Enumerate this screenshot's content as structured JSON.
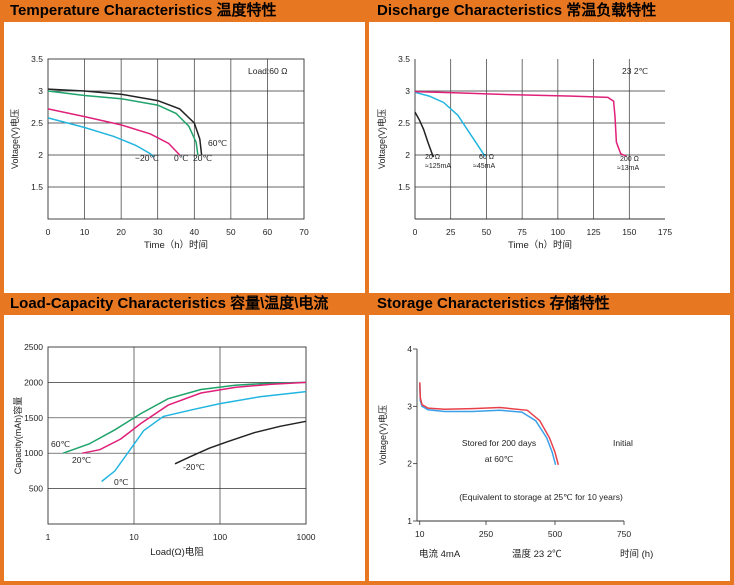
{
  "panel_titles": {
    "temperature": "Temperature Characteristics 温度特性",
    "discharge": "Discharge Characteristics 常温负载特性",
    "load": "Load-Capacity Characteristics 容量\\温度\\电流",
    "storage": "Storage Characteristics  存储特性"
  },
  "colors": {
    "accent": "#e87722",
    "black": "#222222",
    "cyan": "#22b5e0",
    "green": "#1fa36b",
    "magenta": "#e0207a",
    "red": "#e8404a",
    "blue": "#3aa0e8"
  },
  "chart_data": [
    {
      "id": "temperature",
      "type": "line",
      "xlabel": "Time（h）时间",
      "ylabel": "Voltage(V)电压",
      "xlim": [
        0,
        70
      ],
      "ylim": [
        1.0,
        3.5
      ],
      "xticks": [
        0,
        10,
        20,
        30,
        40,
        50,
        60,
        70
      ],
      "yticks": [
        1.5,
        2.0,
        2.5,
        3.0,
        3.5
      ],
      "grid": true,
      "annotations": [
        "Load:60 Ω"
      ],
      "series": [
        {
          "name": "60℃",
          "color": "#222222",
          "points": [
            [
              0,
              3.03
            ],
            [
              10,
              3.0
            ],
            [
              20,
              2.95
            ],
            [
              30,
              2.85
            ],
            [
              36,
              2.72
            ],
            [
              40,
              2.5
            ],
            [
              41.5,
              2.25
            ],
            [
              42,
              2.0
            ]
          ]
        },
        {
          "name": "20℃",
          "color": "#1fa36b",
          "points": [
            [
              0,
              3.0
            ],
            [
              10,
              2.93
            ],
            [
              20,
              2.88
            ],
            [
              30,
              2.78
            ],
            [
              35,
              2.65
            ],
            [
              38.5,
              2.45
            ],
            [
              40.5,
              2.2
            ],
            [
              41,
              2.0
            ]
          ]
        },
        {
          "name": "0℃",
          "color": "#e0207a",
          "points": [
            [
              0,
              2.72
            ],
            [
              10,
              2.6
            ],
            [
              20,
              2.47
            ],
            [
              28,
              2.33
            ],
            [
              33,
              2.18
            ],
            [
              36,
              2.0
            ]
          ]
        },
        {
          "name": "−20℃",
          "color": "#22b5e0",
          "points": [
            [
              0,
              2.58
            ],
            [
              10,
              2.43
            ],
            [
              18,
              2.29
            ],
            [
              24,
              2.15
            ],
            [
              28,
              2.02
            ],
            [
              29,
              1.97
            ]
          ]
        }
      ],
      "series_labels": [
        "60℃",
        "20℃",
        "0℃",
        "−20℃"
      ]
    },
    {
      "id": "discharge",
      "type": "line",
      "xlabel": "Time（h）时间",
      "ylabel": "Voltage(V)电压",
      "xlim": [
        0,
        175
      ],
      "ylim": [
        1.0,
        3.5
      ],
      "xticks": [
        0,
        25,
        50,
        75,
        100,
        125,
        150,
        175
      ],
      "yticks": [
        1.5,
        2.0,
        2.5,
        3.0,
        3.5
      ],
      "grid": true,
      "annotations": [
        "23    2℃"
      ],
      "series": [
        {
          "name": "20 Ω ≈125mA",
          "color": "#222222",
          "points": [
            [
              0,
              2.67
            ],
            [
              3,
              2.55
            ],
            [
              6,
              2.4
            ],
            [
              9,
              2.2
            ],
            [
              12,
              2.02
            ],
            [
              13,
              1.97
            ]
          ]
        },
        {
          "name": "60 Ω ≈45mA",
          "color": "#22b5e0",
          "points": [
            [
              0,
              2.98
            ],
            [
              10,
              2.92
            ],
            [
              20,
              2.82
            ],
            [
              30,
              2.62
            ],
            [
              38,
              2.35
            ],
            [
              44,
              2.15
            ],
            [
              49,
              1.98
            ]
          ]
        },
        {
          "name": "200 Ω ≈13mA",
          "color": "#e0207a",
          "points": [
            [
              0,
              2.99
            ],
            [
              30,
              2.97
            ],
            [
              70,
              2.94
            ],
            [
              110,
              2.92
            ],
            [
              135,
              2.9
            ],
            [
              139,
              2.84
            ],
            [
              140,
              2.6
            ],
            [
              141,
              2.2
            ],
            [
              144,
              2.02
            ],
            [
              148,
              1.98
            ]
          ]
        }
      ],
      "series_labels": [
        "20 Ω",
        "≈125mA",
        "60 Ω",
        "≈45mA",
        "200 Ω",
        "≈13mA"
      ]
    },
    {
      "id": "load",
      "type": "line",
      "xlabel": "Load(Ω)电阻",
      "ylabel": "Capacity(mAh)容量",
      "xscale": "log",
      "xlim": [
        1,
        1000
      ],
      "ylim": [
        0,
        2500
      ],
      "xticks": [
        1,
        10,
        100,
        1000
      ],
      "yticks": [
        500,
        1000,
        1500,
        2000,
        2500
      ],
      "grid": true,
      "series": [
        {
          "name": "60℃",
          "color": "#1fa36b",
          "points": [
            [
              1.5,
              1000
            ],
            [
              3,
              1130
            ],
            [
              6,
              1330
            ],
            [
              12,
              1560
            ],
            [
              25,
              1770
            ],
            [
              60,
              1900
            ],
            [
              150,
              1960
            ],
            [
              400,
              1990
            ],
            [
              1000,
              2000
            ]
          ]
        },
        {
          "name": "20℃",
          "color": "#e0207a",
          "points": [
            [
              2.5,
              1000
            ],
            [
              4,
              1050
            ],
            [
              7,
              1200
            ],
            [
              12,
              1420
            ],
            [
              25,
              1680
            ],
            [
              60,
              1850
            ],
            [
              150,
              1930
            ],
            [
              400,
              1975
            ],
            [
              1000,
              2000
            ]
          ]
        },
        {
          "name": "0℃",
          "color": "#22b5e0",
          "points": [
            [
              4.2,
              600
            ],
            [
              6,
              750
            ],
            [
              9,
              1050
            ],
            [
              13,
              1320
            ],
            [
              22,
              1520
            ],
            [
              50,
              1620
            ],
            [
              100,
              1700
            ],
            [
              300,
              1800
            ],
            [
              1000,
              1870
            ]
          ]
        },
        {
          "name": "-20℃",
          "color": "#222222",
          "points": [
            [
              30,
              850
            ],
            [
              45,
              950
            ],
            [
              75,
              1070
            ],
            [
              120,
              1160
            ],
            [
              250,
              1290
            ],
            [
              500,
              1380
            ],
            [
              1000,
              1450
            ]
          ]
        }
      ],
      "series_labels": [
        "60℃",
        "20℃",
        "0℃",
        "-20℃"
      ]
    },
    {
      "id": "storage",
      "type": "line",
      "ylabel": "Voltage(V)电压",
      "xlim": [
        0,
        750
      ],
      "ylim": [
        1,
        4
      ],
      "xticks": [
        10,
        250,
        500,
        750
      ],
      "yticks": [
        1,
        2,
        3,
        4
      ],
      "grid": false,
      "annotations": [
        "Stored for 200 days",
        "at 60℃",
        "Initial",
        "(Equivalent to storage at 25℃ for 10 years)"
      ],
      "footer": [
        "电流  4mA",
        "温度  23    2℃",
        "时间 (h)"
      ],
      "series": [
        {
          "name": "Stored",
          "color": "#3aa0e8",
          "points": [
            [
              10,
              3.38
            ],
            [
              12,
              3.1
            ],
            [
              18,
              3.0
            ],
            [
              40,
              2.94
            ],
            [
              100,
              2.91
            ],
            [
              200,
              2.91
            ],
            [
              300,
              2.93
            ],
            [
              380,
              2.9
            ],
            [
              430,
              2.75
            ],
            [
              470,
              2.45
            ],
            [
              490,
              2.2
            ],
            [
              502,
              1.98
            ]
          ]
        },
        {
          "name": "Initial",
          "color": "#e8404a",
          "points": [
            [
              10,
              3.42
            ],
            [
              12,
              3.15
            ],
            [
              18,
              3.03
            ],
            [
              40,
              2.97
            ],
            [
              100,
              2.95
            ],
            [
              200,
              2.96
            ],
            [
              300,
              2.98
            ],
            [
              400,
              2.93
            ],
            [
              445,
              2.75
            ],
            [
              480,
              2.45
            ],
            [
              500,
              2.2
            ],
            [
              512,
              1.98
            ]
          ]
        }
      ]
    }
  ]
}
